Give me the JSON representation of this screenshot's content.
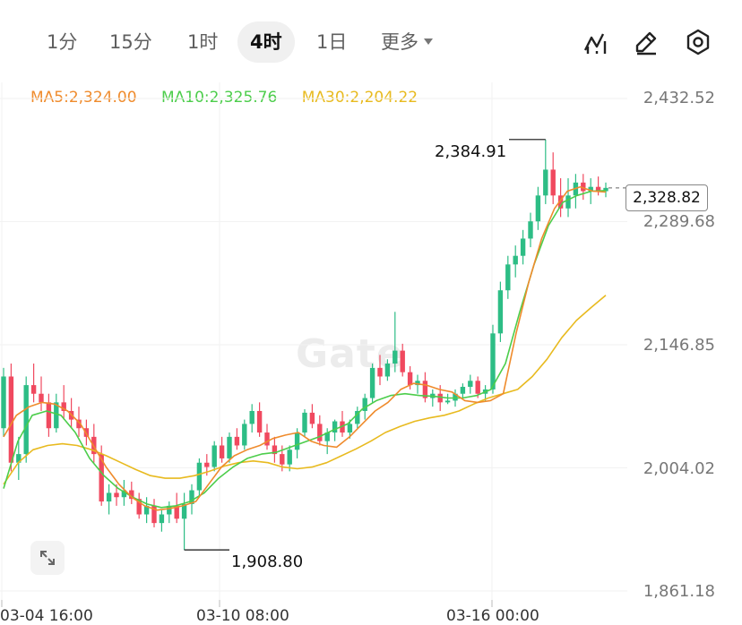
{
  "toolbar": {
    "timeframes": [
      "1分",
      "15分",
      "1时",
      "4时",
      "1日"
    ],
    "active": "4时",
    "more_label": "更多"
  },
  "indicators": {
    "ma5_label": "MA5:2,324.00",
    "ma10_label": "MA10:2,325.76",
    "ma30_label": "MA30:2,204.22"
  },
  "colors": {
    "up": "#2dbd85",
    "down": "#f0495f",
    "ma5": "#ef8b2c",
    "ma10": "#4ccd4b",
    "ma30": "#e8ba1f"
  },
  "watermark": "Gate",
  "price_axis": [
    "2,432.52",
    "2,289.68",
    "2,146.85",
    "2,004.02",
    "1,861.18"
  ],
  "time_axis": [
    "03-04 16:00",
    "03-10 08:00",
    "03-16 00:00"
  ],
  "current_price": "2,328.82",
  "high_label": "2,384.91",
  "low_label": "1,908.80",
  "chart_data": {
    "type": "candlestick",
    "ylim": [
      1861.18,
      2432.52
    ],
    "grid": true,
    "high": 2384.91,
    "low": 1908.8,
    "current": 2328.82,
    "ma5": 2324.0,
    "ma10": 2325.76,
    "ma30": 2204.22,
    "candles": [
      [
        2050,
        2120,
        2040,
        2110
      ],
      [
        2110,
        2125,
        2000,
        2010
      ],
      [
        2010,
        2040,
        1990,
        2020
      ],
      [
        2020,
        2110,
        2010,
        2100
      ],
      [
        2100,
        2125,
        2080,
        2090
      ],
      [
        2090,
        2110,
        2070,
        2080
      ],
      [
        2080,
        2090,
        2040,
        2050
      ],
      [
        2050,
        2090,
        2045,
        2080
      ],
      [
        2080,
        2100,
        2060,
        2070
      ],
      [
        2070,
        2085,
        2050,
        2060
      ],
      [
        2060,
        2075,
        2040,
        2050
      ],
      [
        2050,
        2060,
        2030,
        2040
      ],
      [
        2040,
        2055,
        2010,
        2020
      ],
      [
        2020,
        2030,
        1960,
        1965
      ],
      [
        1965,
        1985,
        1950,
        1975
      ],
      [
        1975,
        1985,
        1960,
        1970
      ],
      [
        1970,
        1990,
        1960,
        1978
      ],
      [
        1978,
        1988,
        1962,
        1968
      ],
      [
        1968,
        1975,
        1945,
        1950
      ],
      [
        1950,
        1970,
        1940,
        1960
      ],
      [
        1960,
        1968,
        1935,
        1940
      ],
      [
        1940,
        1955,
        1930,
        1950
      ],
      [
        1950,
        1965,
        1940,
        1960
      ],
      [
        1960,
        1975,
        1940,
        1945
      ],
      [
        1945,
        1975,
        1908.8,
        1962
      ],
      [
        1962,
        1985,
        1950,
        1978
      ],
      [
        1978,
        2015,
        1970,
        2010
      ],
      [
        2010,
        2020,
        1995,
        2005
      ],
      [
        2005,
        2035,
        2000,
        2030
      ],
      [
        2030,
        2040,
        2010,
        2015
      ],
      [
        2015,
        2045,
        2010,
        2040
      ],
      [
        2040,
        2050,
        2025,
        2030
      ],
      [
        2030,
        2060,
        2025,
        2055
      ],
      [
        2055,
        2078,
        2045,
        2070
      ],
      [
        2070,
        2080,
        2040,
        2045
      ],
      [
        2045,
        2055,
        2025,
        2030
      ],
      [
        2030,
        2040,
        2010,
        2020
      ],
      [
        2020,
        2030,
        2000,
        2008
      ],
      [
        2008,
        2030,
        2000,
        2025
      ],
      [
        2025,
        2050,
        2015,
        2045
      ],
      [
        2045,
        2072,
        2040,
        2068
      ],
      [
        2068,
        2078,
        2050,
        2055
      ],
      [
        2055,
        2065,
        2030,
        2035
      ],
      [
        2035,
        2050,
        2020,
        2045
      ],
      [
        2045,
        2060,
        2035,
        2058
      ],
      [
        2058,
        2070,
        2040,
        2045
      ],
      [
        2045,
        2060,
        2038,
        2055
      ],
      [
        2055,
        2075,
        2050,
        2070
      ],
      [
        2070,
        2090,
        2060,
        2085
      ],
      [
        2085,
        2125,
        2080,
        2120
      ],
      [
        2120,
        2135,
        2100,
        2110
      ],
      [
        2110,
        2130,
        2105,
        2125
      ],
      [
        2125,
        2185,
        2115,
        2140
      ],
      [
        2140,
        2148,
        2110,
        2115
      ],
      [
        2115,
        2122,
        2095,
        2100
      ],
      [
        2100,
        2112,
        2090,
        2105
      ],
      [
        2105,
        2115,
        2080,
        2085
      ],
      [
        2085,
        2095,
        2075,
        2090
      ],
      [
        2090,
        2100,
        2070,
        2080
      ],
      [
        2080,
        2090,
        2078,
        2082
      ],
      [
        2082,
        2095,
        2075,
        2090
      ],
      [
        2090,
        2102,
        2085,
        2098
      ],
      [
        2098,
        2112,
        2090,
        2105
      ],
      [
        2105,
        2110,
        2085,
        2090
      ],
      [
        2090,
        2100,
        2082,
        2095
      ],
      [
        2095,
        2170,
        2090,
        2160
      ],
      [
        2160,
        2220,
        2150,
        2210
      ],
      [
        2210,
        2250,
        2200,
        2240
      ],
      [
        2240,
        2262,
        2225,
        2250
      ],
      [
        2250,
        2280,
        2240,
        2270
      ],
      [
        2270,
        2300,
        2260,
        2290
      ],
      [
        2290,
        2330,
        2280,
        2320
      ],
      [
        2320,
        2384.91,
        2310,
        2350
      ],
      [
        2350,
        2370,
        2310,
        2320
      ],
      [
        2320,
        2340,
        2295,
        2305
      ],
      [
        2305,
        2340,
        2295,
        2320
      ],
      [
        2320,
        2345,
        2305,
        2335
      ],
      [
        2335,
        2345,
        2315,
        2325
      ],
      [
        2325,
        2340,
        2310,
        2330
      ],
      [
        2330,
        2342,
        2320,
        2325
      ],
      [
        2325,
        2335,
        2318,
        2328.82
      ]
    ],
    "ma5_series": [
      2040,
      2065,
      2075,
      2080,
      2078,
      2070,
      2055,
      2030,
      2005,
      1985,
      1970,
      1960,
      1955,
      1957,
      1960,
      1965,
      1985,
      2005,
      2018,
      2025,
      2030,
      2038,
      2042,
      2045,
      2035,
      2030,
      2028,
      2040,
      2055,
      2070,
      2080,
      2095,
      2102,
      2100,
      2095,
      2092,
      2082,
      2080,
      2082,
      2090,
      2160,
      2220,
      2270,
      2305,
      2325,
      2330,
      2325,
      2324
    ],
    "ma10_series": [
      1980,
      2035,
      2065,
      2070,
      2065,
      2045,
      2015,
      1995,
      1980,
      1970,
      1962,
      1958,
      1960,
      1965,
      1975,
      1992,
      2005,
      2015,
      2020,
      2022,
      2028,
      2034,
      2040,
      2048,
      2055,
      2072,
      2082,
      2088,
      2090,
      2088,
      2087,
      2085,
      2085,
      2088,
      2095,
      2125,
      2185,
      2240,
      2285,
      2312,
      2320,
      2325,
      2325.76
    ],
    "ma30_series": [
      1985,
      2010,
      2025,
      2030,
      2032,
      2030,
      2025,
      2018,
      2010,
      2002,
      1995,
      1992,
      1992,
      1995,
      2000,
      2006,
      2010,
      2012,
      2010,
      2005,
      2003,
      2005,
      2010,
      2018,
      2026,
      2035,
      2045,
      2052,
      2058,
      2062,
      2065,
      2070,
      2078,
      2085,
      2090,
      2095,
      2110,
      2130,
      2155,
      2175,
      2190,
      2204.22
    ]
  }
}
